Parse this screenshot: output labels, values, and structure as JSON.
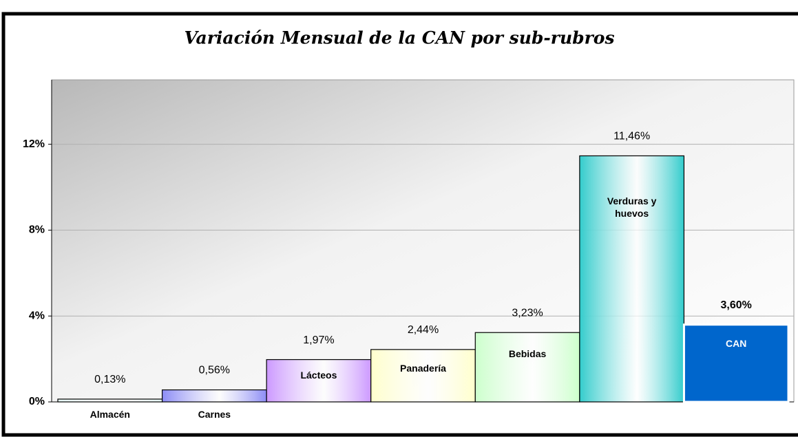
{
  "chart_data": {
    "type": "bar",
    "title": "Variación Mensual de la CAN por sub-rubros",
    "categories": [
      "Almacén",
      "Carnes",
      "Lácteos",
      "Panadería",
      "Bebidas",
      "Verduras y huevos",
      "CAN"
    ],
    "values": [
      0.13,
      0.56,
      1.97,
      2.44,
      3.23,
      11.46,
      3.6
    ],
    "value_labels": [
      "0,13%",
      "0,56%",
      "1,97%",
      "2,44%",
      "3,23%",
      "11,46%",
      "3,60%"
    ],
    "colors": [
      "#e6fbf6",
      "#8c8cf5",
      "#cc99ff",
      "#ffffcc",
      "#ccffcc",
      "#33cccc",
      "#0066cc"
    ],
    "ylim": [
      0,
      15
    ],
    "yticks": [
      {
        "value": 0,
        "label": "0%"
      },
      {
        "value": 4,
        "label": "4%"
      },
      {
        "value": 8,
        "label": "8%"
      },
      {
        "value": 12,
        "label": "12%"
      }
    ],
    "grid": true
  }
}
